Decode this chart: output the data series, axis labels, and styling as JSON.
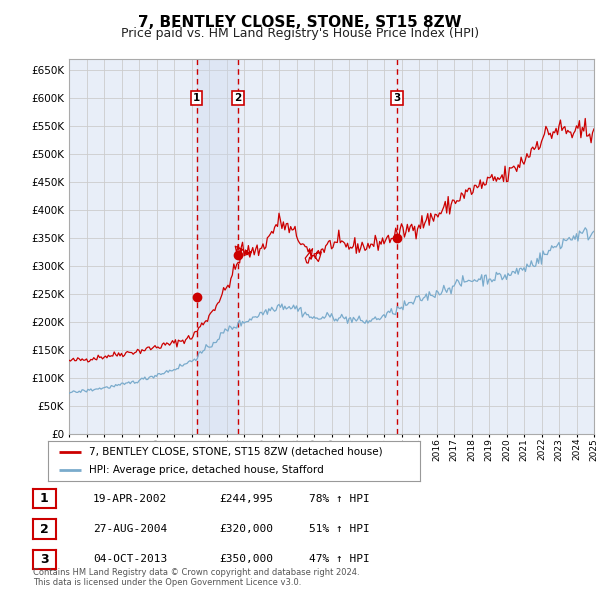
{
  "title": "7, BENTLEY CLOSE, STONE, ST15 8ZW",
  "subtitle": "Price paid vs. HM Land Registry's House Price Index (HPI)",
  "title_fontsize": 11,
  "subtitle_fontsize": 9,
  "background_color": "#ffffff",
  "grid_color": "#cccccc",
  "plot_bg_color": "#e8eef8",
  "red_line_color": "#cc0000",
  "blue_line_color": "#7aabcc",
  "dashed_line_color": "#cc0000",
  "shade_color": "#ccd8ee",
  "x_start_year": 1995,
  "x_end_year": 2025,
  "ylim": [
    0,
    670000
  ],
  "yticks": [
    0,
    50000,
    100000,
    150000,
    200000,
    250000,
    300000,
    350000,
    400000,
    450000,
    500000,
    550000,
    600000,
    650000
  ],
  "sale_dates": [
    2002.3,
    2004.65,
    2013.75
  ],
  "sale_prices": [
    244995,
    320000,
    350000
  ],
  "sale_labels": [
    "1",
    "2",
    "3"
  ],
  "sale_info": [
    {
      "label": "1",
      "date": "19-APR-2002",
      "price": "£244,995",
      "hpi": "78% ↑ HPI"
    },
    {
      "label": "2",
      "date": "27-AUG-2004",
      "price": "£320,000",
      "hpi": "51% ↑ HPI"
    },
    {
      "label": "3",
      "date": "04-OCT-2013",
      "price": "£350,000",
      "hpi": "47% ↑ HPI"
    }
  ],
  "legend_entries": [
    "7, BENTLEY CLOSE, STONE, ST15 8ZW (detached house)",
    "HPI: Average price, detached house, Stafford"
  ],
  "footnote": "Contains HM Land Registry data © Crown copyright and database right 2024.\nThis data is licensed under the Open Government Licence v3.0."
}
